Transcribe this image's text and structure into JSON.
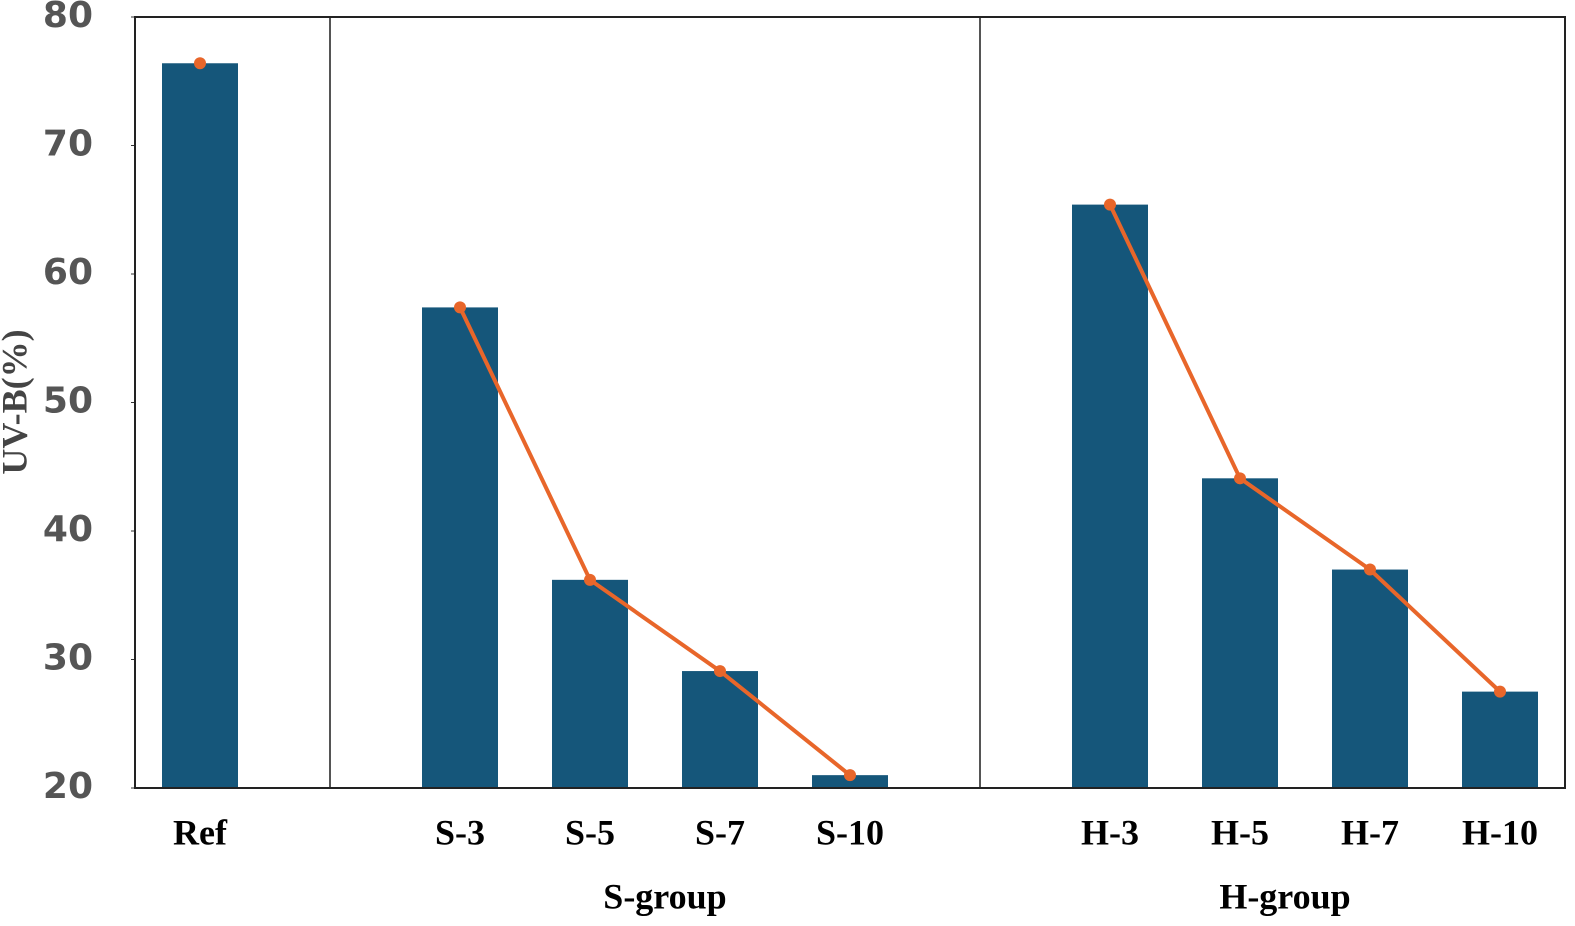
{
  "chart_data": {
    "type": "bar",
    "y_label": "UV-B(%)",
    "categories": [
      "Ref",
      null,
      "S-3",
      "S-5",
      "S-7",
      "S-10",
      null,
      "H-3",
      "H-5",
      "H-7",
      "H-10"
    ],
    "series": [
      {
        "type": "bar",
        "color": "#15567a",
        "values": [
          76.4,
          null,
          57.4,
          36.2,
          29.1,
          21.0,
          null,
          65.4,
          44.1,
          37.0,
          27.5
        ]
      },
      {
        "type": "line",
        "color": "#e8662a",
        "values": [
          76.4,
          null,
          57.4,
          36.2,
          29.1,
          21.0,
          null,
          65.4,
          44.1,
          37.0,
          27.5
        ]
      }
    ],
    "group_labels": [
      "S-group",
      "H-group"
    ],
    "ylim": [
      20,
      80
    ],
    "yticks": [
      20,
      30,
      40,
      50,
      60,
      70,
      80
    ]
  }
}
